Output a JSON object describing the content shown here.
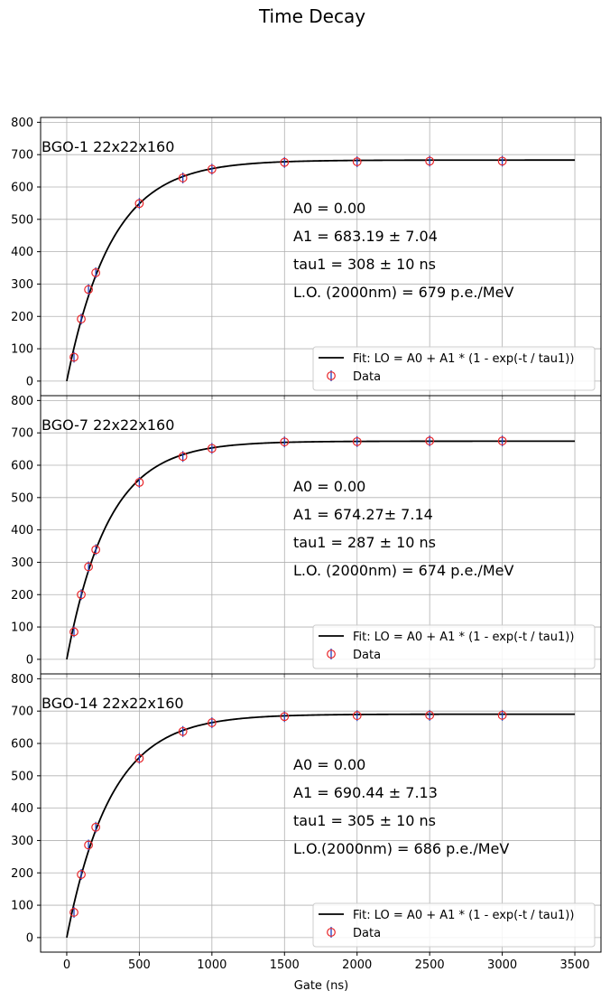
{
  "figure": {
    "title": "Time Decay",
    "xlabel": "Gate (ns)",
    "xticks": [
      0,
      500,
      1000,
      1500,
      2000,
      2500,
      3000,
      3500
    ],
    "yticks": [
      0,
      100,
      200,
      300,
      400,
      500,
      600,
      700,
      800
    ]
  },
  "chart_data": [
    {
      "type": "scatter",
      "panel_label": "BGO-1 22x22x160",
      "xlim": [
        -180,
        3680
      ],
      "ylim": [
        -45,
        815
      ],
      "grid": true,
      "legend_placement": "lower-right",
      "legend": {
        "fit_label": "Fit: LO = A0 + A1 * (1 - exp(-t / tau1))",
        "data_label": "Data"
      },
      "annotations": [
        "A0 = 0.00",
        "A1 = 683.19 ± 7.04",
        "tau1 = 308 ± 10 ns",
        "L.O. (2000nm) = 679 p.e./MeV"
      ],
      "fit": {
        "A0": 0.0,
        "A1": 683.19,
        "tau1": 308,
        "x_range": [
          0,
          3500
        ]
      },
      "data": {
        "x": [
          50,
          100,
          150,
          200,
          500,
          800,
          1000,
          1500,
          2000,
          2500,
          3000
        ],
        "y": [
          74,
          192,
          283,
          335,
          549,
          628,
          655,
          676,
          678,
          680,
          680
        ]
      }
    },
    {
      "type": "scatter",
      "panel_label": "BGO-7 22x22x160",
      "xlim": [
        -180,
        3680
      ],
      "ylim": [
        -45,
        815
      ],
      "grid": true,
      "legend_placement": "lower-right",
      "legend": {
        "fit_label": "Fit: LO = A0 + A1 * (1 - exp(-t / tau1))",
        "data_label": "Data"
      },
      "annotations": [
        "A0 = 0.00",
        "A1 = 674.27± 7.14",
        "tau1 = 287 ± 10 ns",
        "L.O. (2000nm) = 674 p.e./MeV"
      ],
      "fit": {
        "A0": 0.0,
        "A1": 674.27,
        "tau1": 287,
        "x_range": [
          0,
          3500
        ]
      },
      "data": {
        "x": [
          50,
          100,
          150,
          200,
          500,
          800,
          1000,
          1500,
          2000,
          2500,
          3000
        ],
        "y": [
          85,
          200,
          286,
          339,
          547,
          627,
          652,
          672,
          673,
          675,
          675
        ]
      }
    },
    {
      "type": "scatter",
      "panel_label": "BGO-14 22x22x160",
      "xlim": [
        -180,
        3680
      ],
      "ylim": [
        -45,
        815
      ],
      "grid": true,
      "legend_placement": "lower-right",
      "legend": {
        "fit_label": "Fit: LO = A0 + A1 * (1 - exp(-t / tau1))",
        "data_label": "Data"
      },
      "annotations": [
        "A0 = 0.00",
        "A1 = 690.44 ± 7.13",
        "tau1 = 305 ± 10 ns",
        "L.O.(2000nm) = 686 p.e./MeV"
      ],
      "fit": {
        "A0": 0.0,
        "A1": 690.44,
        "tau1": 305,
        "x_range": [
          0,
          3500
        ]
      },
      "data": {
        "x": [
          50,
          100,
          150,
          200,
          500,
          800,
          1000,
          1500,
          2000,
          2500,
          3000
        ],
        "y": [
          78,
          195,
          286,
          341,
          554,
          637,
          664,
          683,
          686,
          687,
          687
        ]
      }
    }
  ],
  "colors": {
    "fit_line": "#000000",
    "marker_edge": "#e8262a",
    "errorbar": "#1f3fbf",
    "grid": "#b0b0b0",
    "axes": "#000000"
  }
}
